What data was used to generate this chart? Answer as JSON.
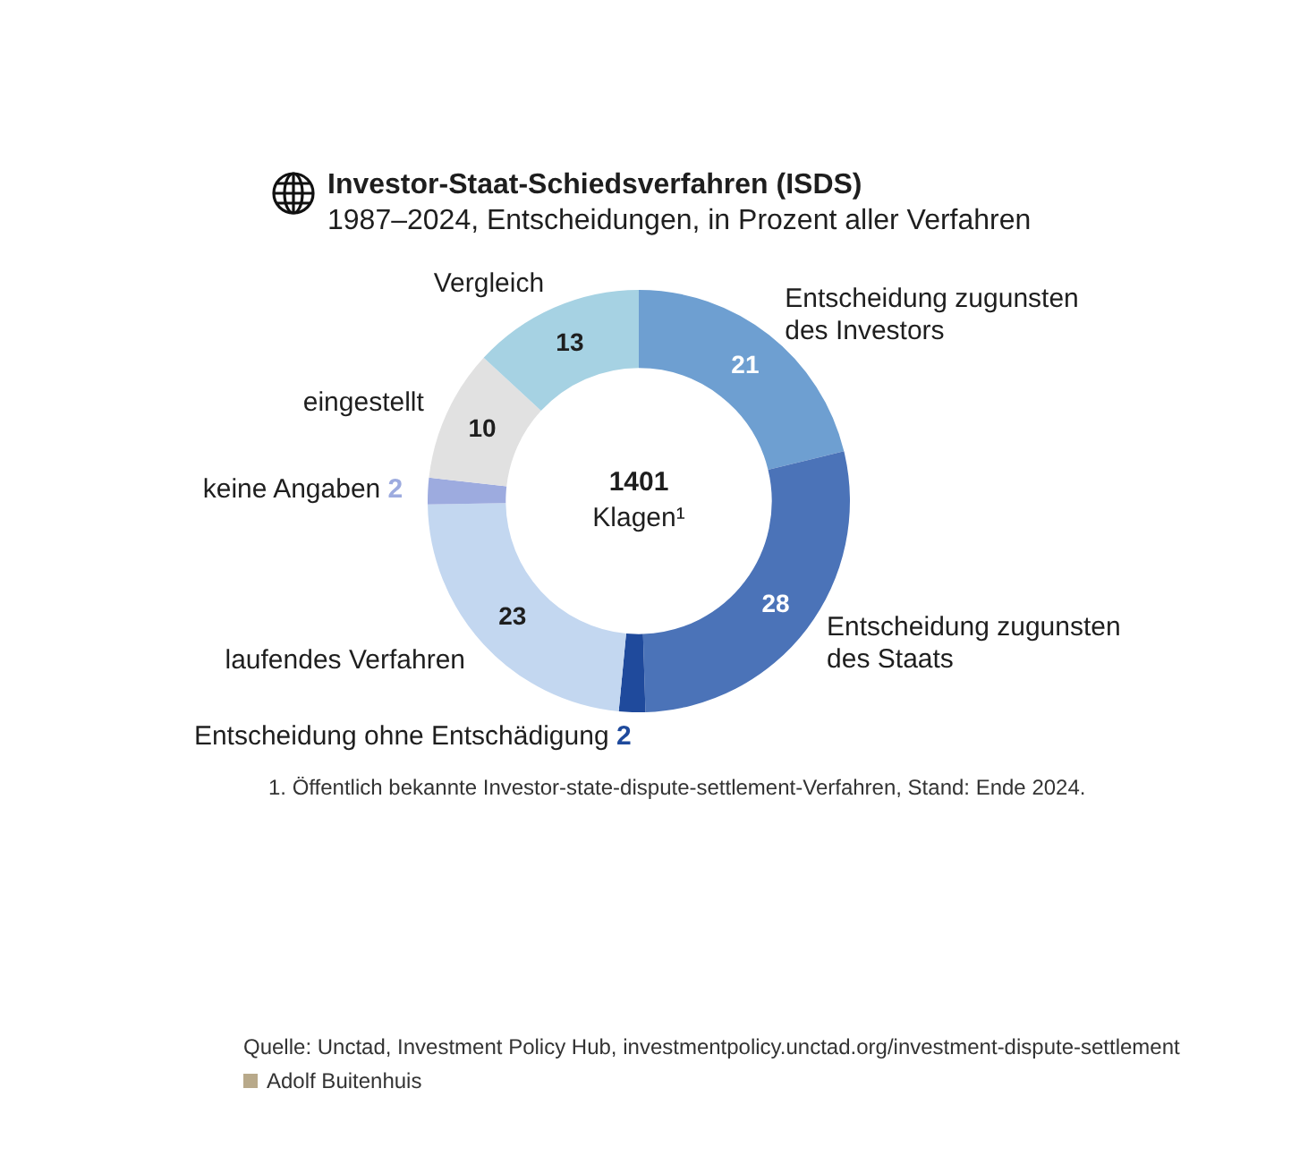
{
  "chart_data": {
    "type": "donut",
    "title": "Investor-Staat-Schiedsverfahren (ISDS)",
    "subtitle": "1987–2024, Entscheidungen, in Prozent aller Verfahren",
    "categories": [
      "Entscheidung zugunsten des Investors",
      "Entscheidung zugunsten des Staats",
      "Entscheidung ohne Entschädigung",
      "laufendes Verfahren",
      "keine Angaben",
      "eingestellt",
      "Vergleich"
    ],
    "values": [
      21,
      28,
      2,
      23,
      2,
      10,
      13
    ],
    "colors": [
      "#6e9fd1",
      "#4b73b8",
      "#1f4a9c",
      "#c3d7f0",
      "#9dabdf",
      "#e1e1e1",
      "#a6d2e3"
    ],
    "data_labels": true,
    "legend": false,
    "annotations": [
      "1401",
      "Klagen¹",
      "1. Öffentlich bekannte Investor-state-dispute-settlement-Verfahren, Stand: Ende 2024.",
      "Quelle: Unctad, Investment Policy Hub, investmentpolicy.unctad.org/investment-dispute-settlement",
      "Adolf Buitenhuis"
    ]
  }
}
